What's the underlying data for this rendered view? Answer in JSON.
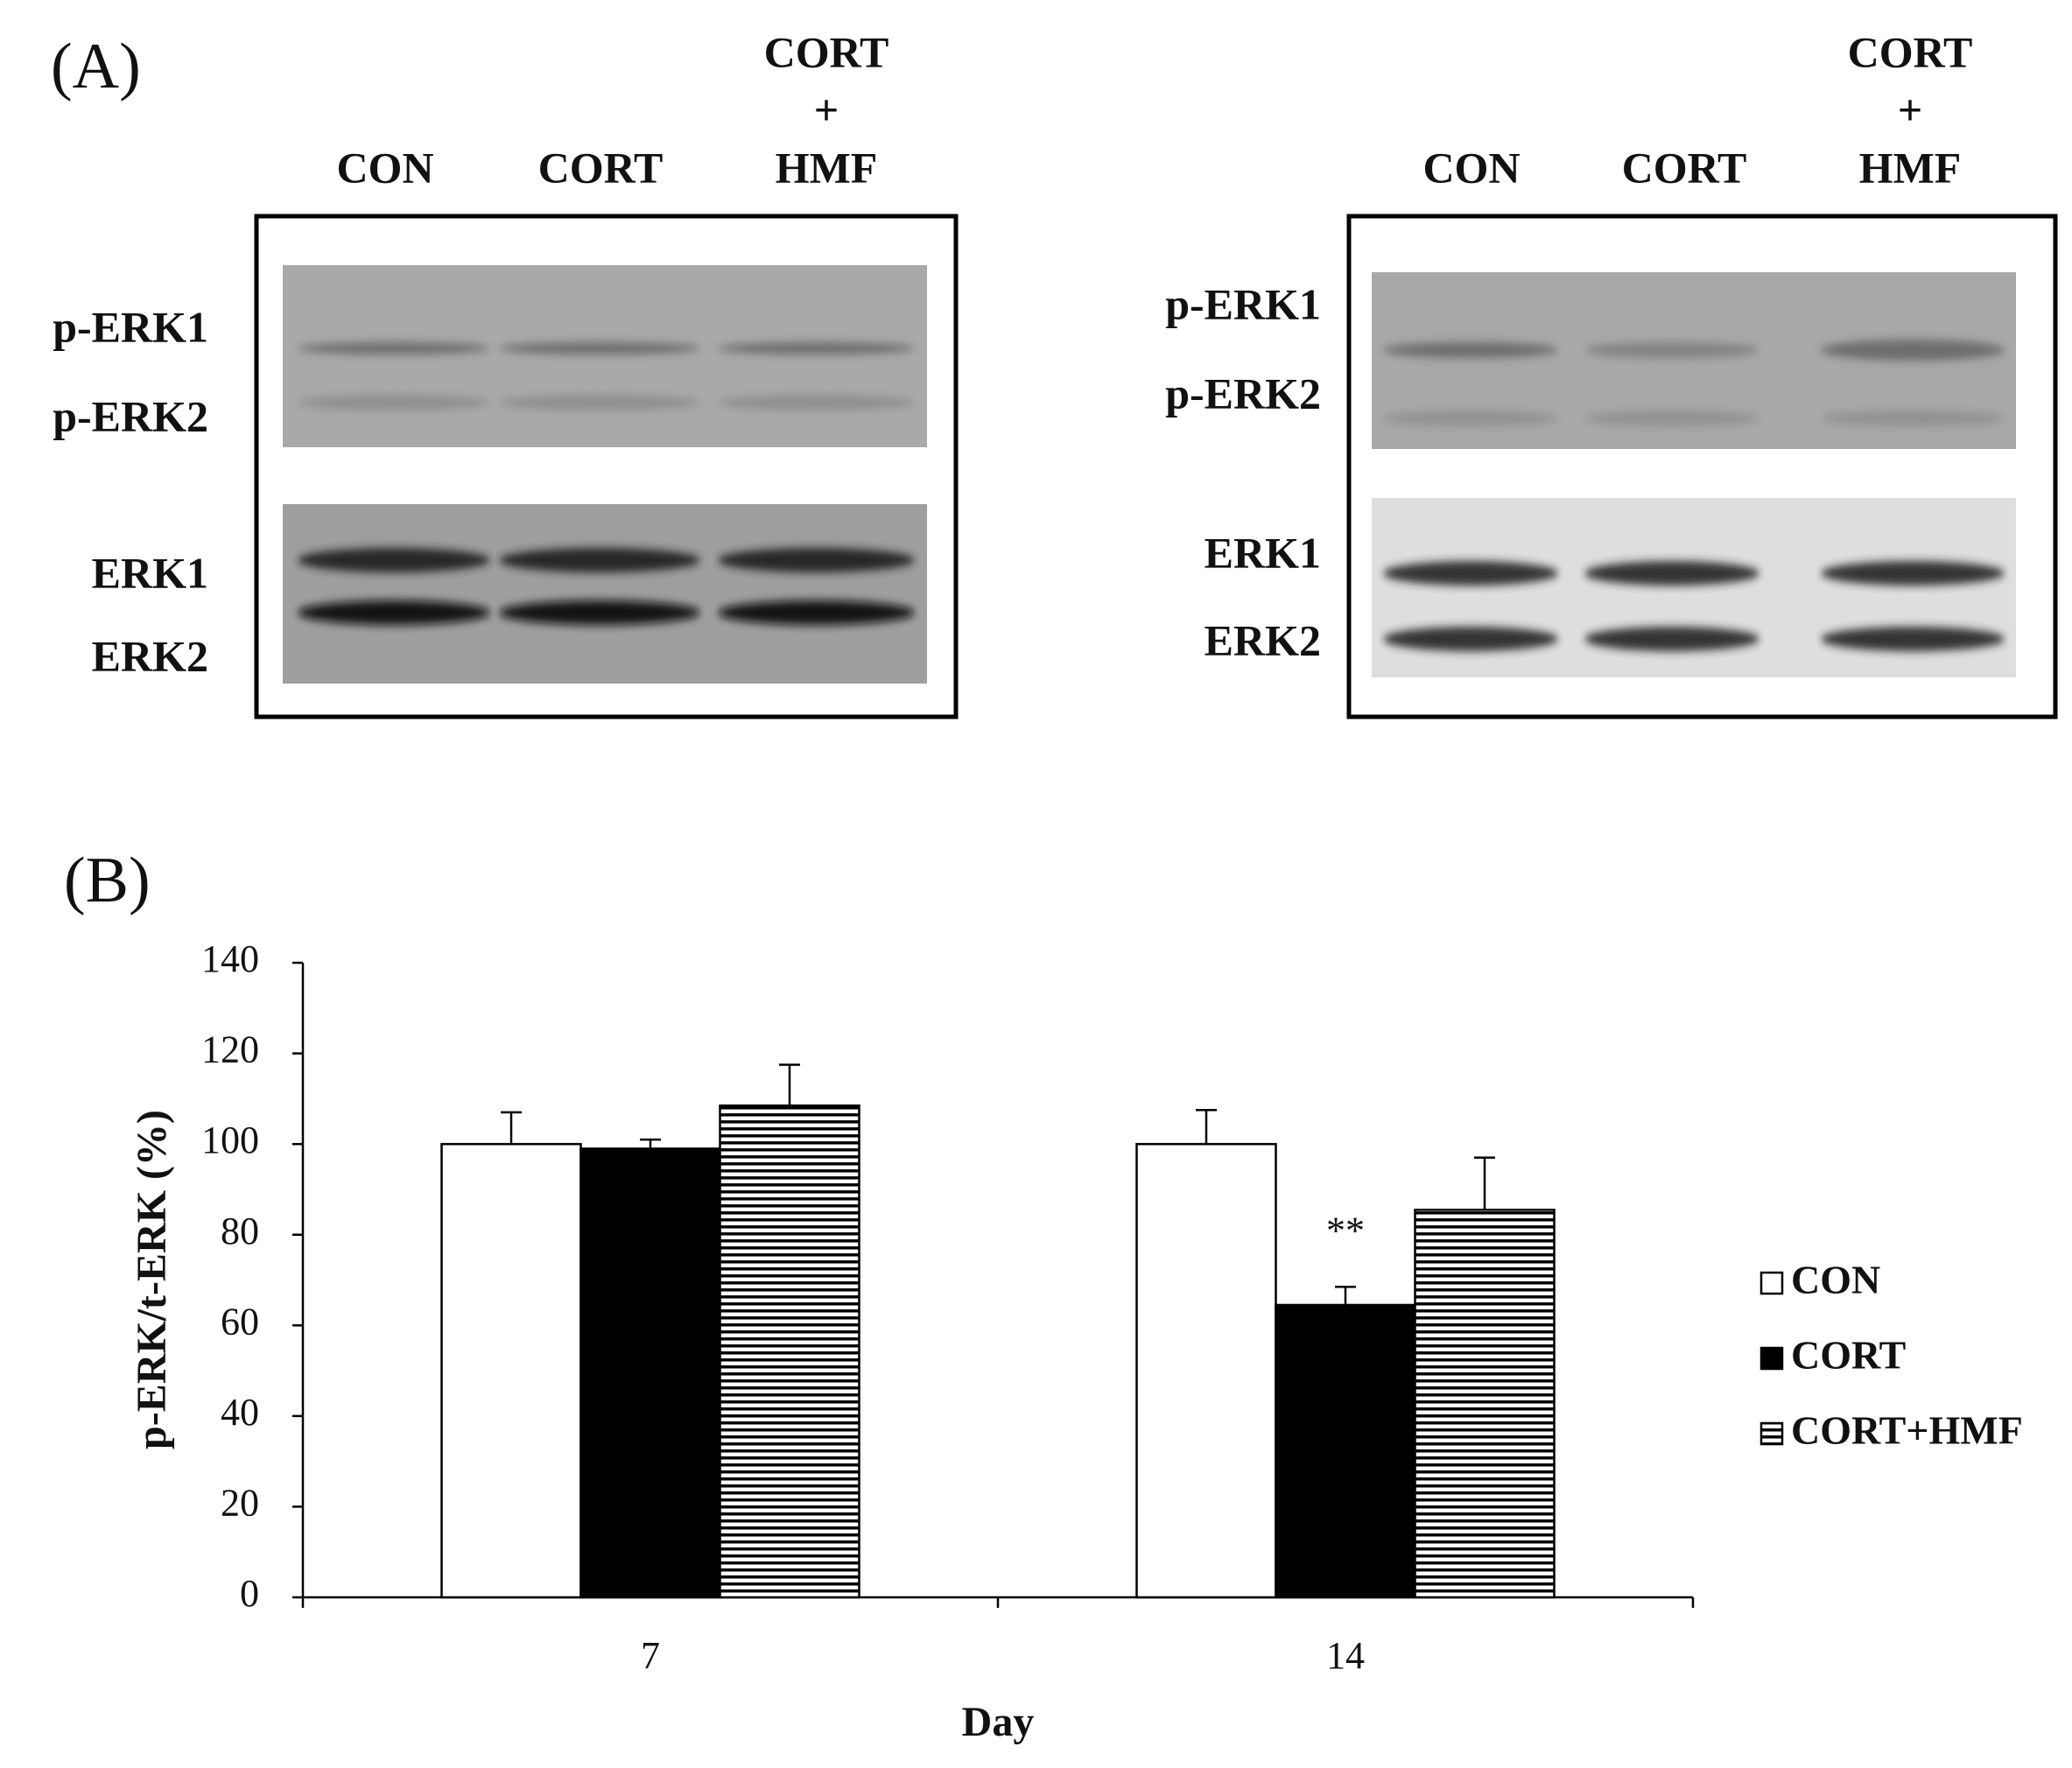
{
  "figure": {
    "panel_a": "(A)",
    "panel_b": "(B)",
    "blots": [
      {
        "lanes": [
          [
            "CON"
          ],
          [
            "CORT"
          ],
          [
            "CORT",
            "+",
            "HMF"
          ]
        ],
        "bands": [
          "p-ERK1",
          "p-ERK2",
          "ERK1",
          "ERK2"
        ]
      },
      {
        "lanes": [
          [
            "CON"
          ],
          [
            "CORT"
          ],
          [
            "CORT",
            "+",
            "HMF"
          ]
        ],
        "bands": [
          "p-ERK1",
          "p-ERK2",
          "ERK1",
          "ERK2"
        ]
      }
    ]
  },
  "chart_data": {
    "type": "bar",
    "x_label": "Day",
    "y_label": "p-ERK/t-ERK (%)",
    "categories": [
      "7",
      "14"
    ],
    "series": [
      {
        "name": "CON",
        "color": "#ffffff",
        "values": [
          100,
          100
        ],
        "errors": [
          7,
          7.5
        ]
      },
      {
        "name": "CORT",
        "color": "#000000",
        "values": [
          99,
          64.5
        ],
        "errors": [
          2,
          4
        ]
      },
      {
        "name": "CORT+HMF",
        "color": "#ffffff",
        "pattern": "horizontal-lines",
        "values": [
          108.5,
          85.5
        ],
        "errors": [
          9,
          11.5
        ]
      }
    ],
    "ylim": [
      0,
      140
    ],
    "yticks": [
      0,
      20,
      40,
      60,
      80,
      100,
      120,
      140
    ],
    "annotations": [
      {
        "text": "**"
      }
    ],
    "legend": "right"
  }
}
